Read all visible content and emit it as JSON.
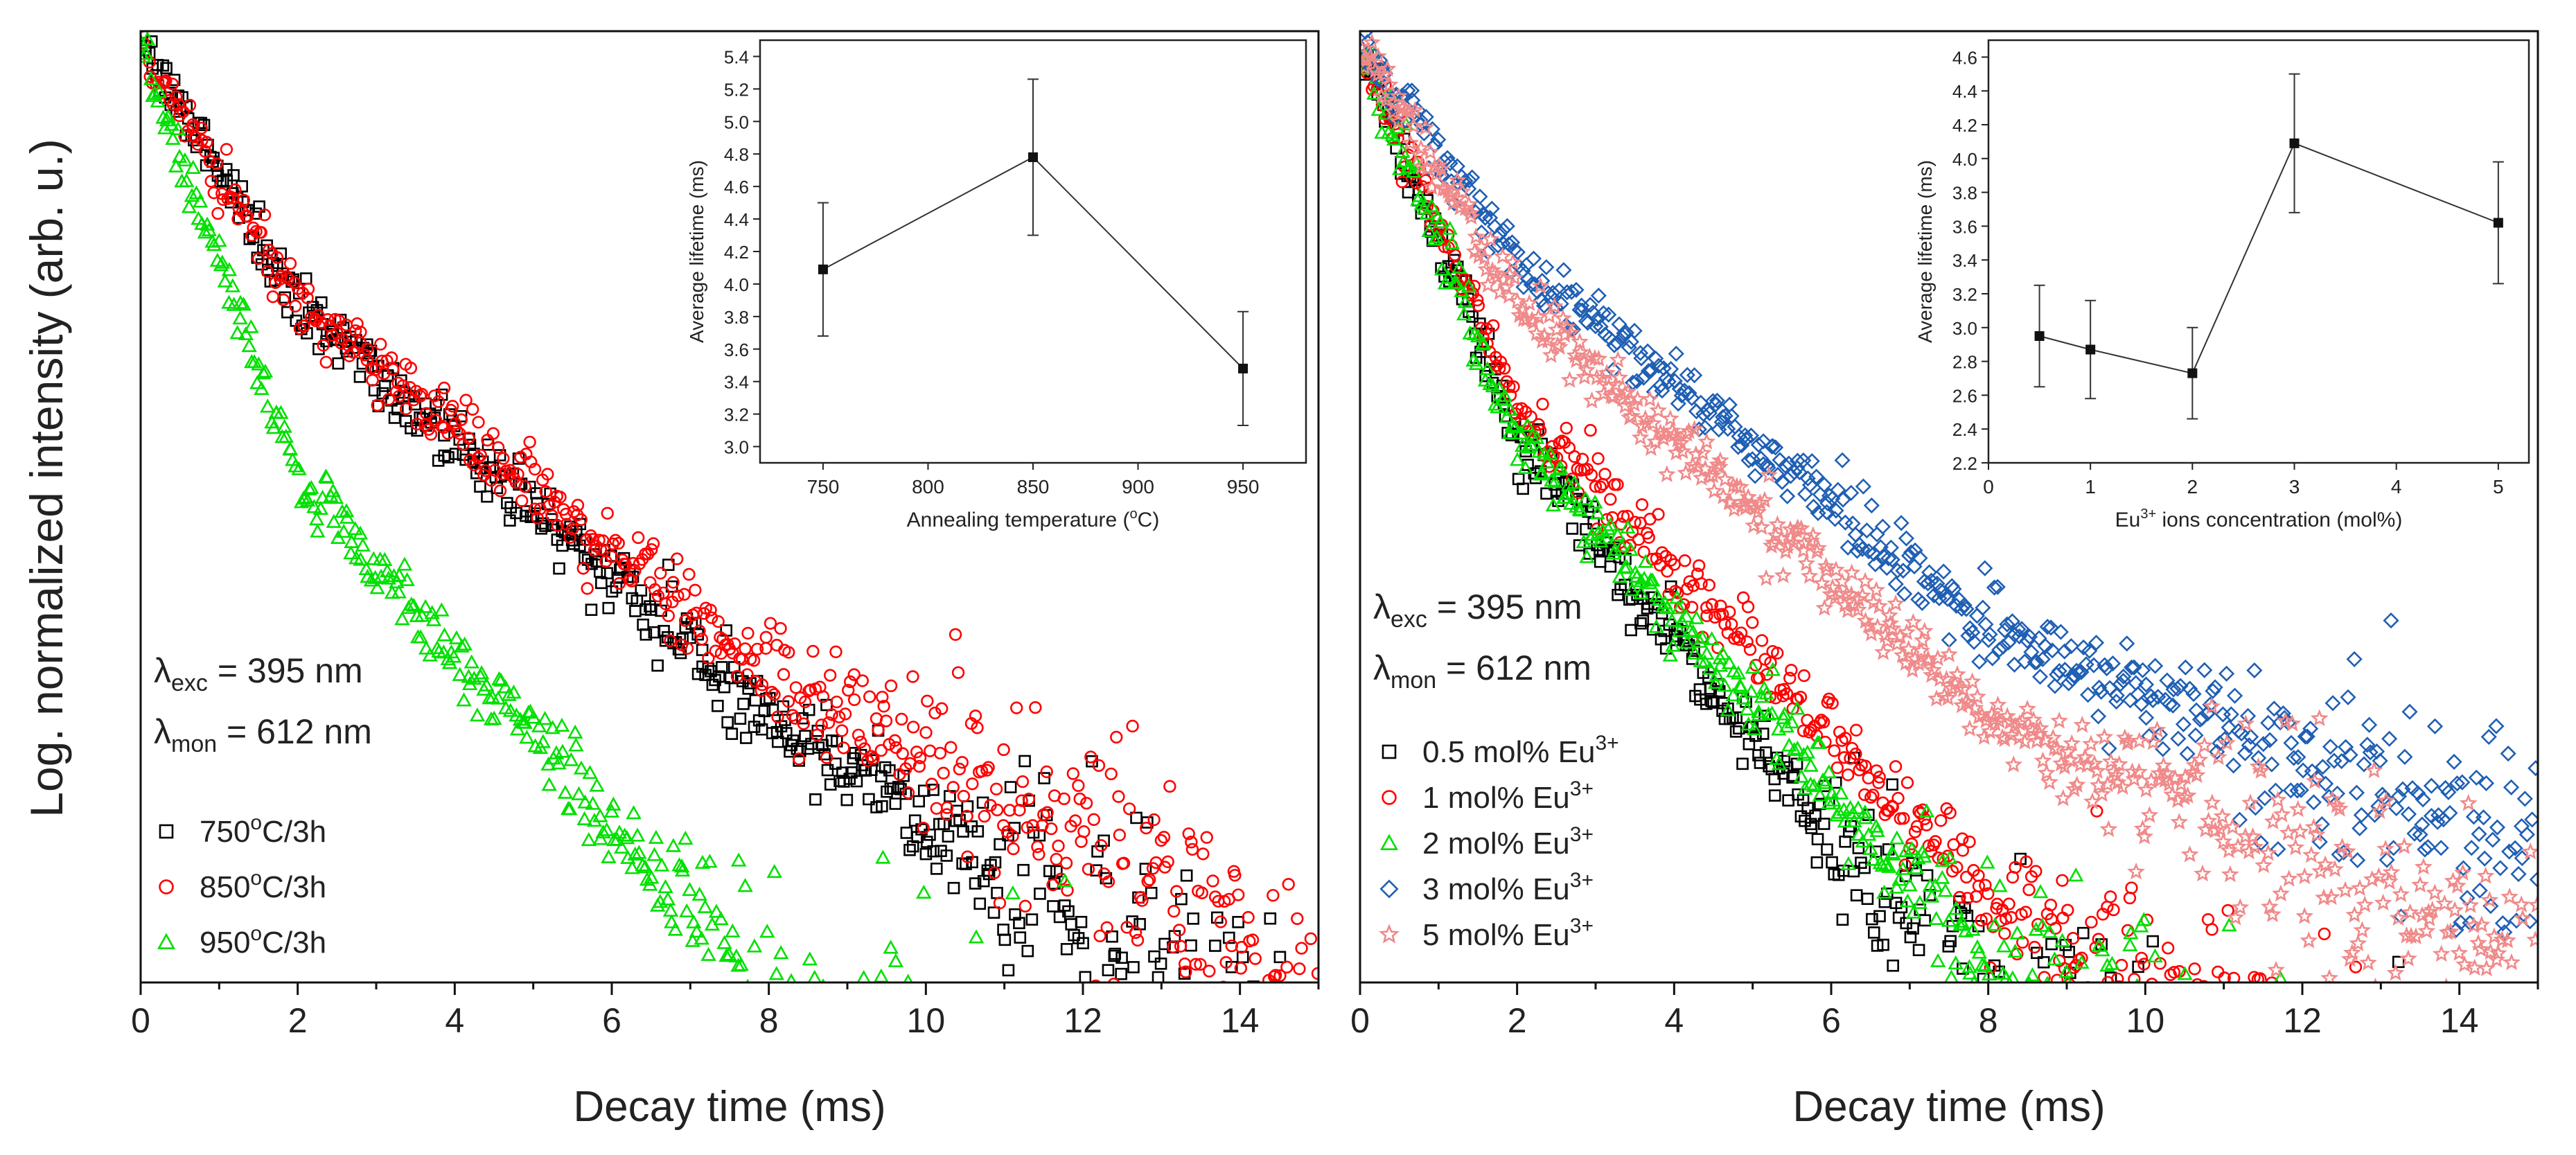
{
  "figure": {
    "y_axis_label": "Log. normalized intensity (arb. u.)"
  },
  "chart_data": [
    {
      "id": "left-main",
      "type": "scatter",
      "xlabel": "Decay time (ms)",
      "ylabel": "Log. normalized intensity (arb. u.)",
      "xlim": [
        0,
        15
      ],
      "ylim_log_decades": [
        0,
        2.6
      ],
      "y_ticks_labeled": false,
      "x_ticks": [
        0,
        2,
        4,
        6,
        8,
        10,
        12,
        14
      ],
      "excitation": {
        "symbol": "λ",
        "sub": "exc",
        "text": " = 395 nm"
      },
      "monitoring": {
        "symbol": "λ",
        "sub": "mon",
        "text": " = 612 nm"
      },
      "series": [
        {
          "name_main": "750",
          "name_sup": "o",
          "name_tail": "C/3h",
          "marker": "square",
          "color": "#000000",
          "decades_per_ms": [
            0.36,
            0.19,
            0.14
          ],
          "noise_onset_ms": 9.0,
          "noise_scale": 0.18
        },
        {
          "name_main": "850",
          "name_sup": "o",
          "name_tail": "C/3h",
          "marker": "circle",
          "color": "#ff0000",
          "decades_per_ms": [
            0.36,
            0.17,
            0.12
          ],
          "noise_onset_ms": 7.0,
          "noise_scale": 0.12
        },
        {
          "name_main": "950",
          "name_sup": "o",
          "name_tail": "C/3h",
          "marker": "triangle",
          "color": "#00e000",
          "decades_per_ms": [
            0.6,
            0.24,
            0.14
          ],
          "noise_onset_ms": 6.0,
          "noise_scale": 0.22
        }
      ],
      "inset": {
        "type": "line",
        "xlabel_main": "Annealing temperature (",
        "xlabel_sup": "o",
        "xlabel_tail": "C)",
        "ylabel": "Average lifetime (ms)",
        "xlim": [
          720,
          980
        ],
        "ylim": [
          2.9,
          5.5
        ],
        "x_ticks": [
          750,
          800,
          850,
          900,
          950
        ],
        "y_ticks": [
          3.0,
          3.2,
          3.4,
          3.6,
          3.8,
          4.0,
          4.2,
          4.4,
          4.6,
          4.8,
          5.0,
          5.2,
          5.4
        ],
        "y_tick_labels": [
          "3.0",
          "3.2",
          "3.4",
          "3.6",
          "3.8",
          "4.0",
          "4.2",
          "4.4",
          "4.6",
          "4.8",
          "5.0",
          "5.2",
          "5.4"
        ],
        "points": [
          {
            "x": 750,
            "y": 4.09,
            "err": 0.41
          },
          {
            "x": 850,
            "y": 4.78,
            "err": 0.48
          },
          {
            "x": 950,
            "y": 3.48,
            "err": 0.35
          }
        ]
      }
    },
    {
      "id": "right-main",
      "type": "scatter",
      "xlabel": "Decay time (ms)",
      "ylabel": "",
      "xlim": [
        0,
        15
      ],
      "ylim_log_decades": [
        0,
        2.6
      ],
      "y_ticks_labeled": false,
      "x_ticks": [
        0,
        2,
        4,
        6,
        8,
        10,
        12,
        14
      ],
      "excitation": {
        "symbol": "λ",
        "sub": "exc",
        "text": " = 395 nm"
      },
      "monitoring": {
        "symbol": "λ",
        "sub": "mon",
        "text": " = 612 nm"
      },
      "series": [
        {
          "name_main": "0.5 mol% Eu",
          "name_sup": "3+",
          "name_tail": "",
          "marker": "square",
          "color": "#000000",
          "decades_per_ms": [
            0.55,
            0.27,
            0.13
          ],
          "noise_onset_ms": 5.0,
          "noise_scale": 0.25
        },
        {
          "name_main": "1 mol% Eu",
          "name_sup": "3+",
          "name_tail": "",
          "marker": "circle",
          "color": "#ff0000",
          "decades_per_ms": [
            0.5,
            0.23,
            0.12
          ],
          "noise_onset_ms": 7.0,
          "noise_scale": 0.15
        },
        {
          "name_main": "2 mol% Eu",
          "name_sup": "3+",
          "name_tail": "",
          "marker": "triangle",
          "color": "#00e000",
          "decades_per_ms": [
            0.55,
            0.24,
            0.13
          ],
          "noise_onset_ms": 6.0,
          "noise_scale": 0.18
        },
        {
          "name_main": "3 mol% Eu",
          "name_sup": "3+",
          "name_tail": "",
          "marker": "diamond",
          "color": "#1f5fb4",
          "decades_per_ms": [
            0.3,
            0.17,
            0.09
          ],
          "noise_onset_ms": 9.0,
          "noise_scale": 0.12
        },
        {
          "name_main": "5 mol% Eu",
          "name_sup": "3+",
          "name_tail": "",
          "marker": "star",
          "color": "#f08a8a",
          "decades_per_ms": [
            0.36,
            0.19,
            0.1
          ],
          "noise_onset_ms": 8.0,
          "noise_scale": 0.14
        }
      ],
      "inset": {
        "type": "line",
        "xlabel_main": "Eu",
        "xlabel_sup": "3+",
        "xlabel_tail": " ions concentration (mol%)",
        "ylabel": "Average lifetime (ms)",
        "xlim": [
          0,
          5.3
        ],
        "ylim": [
          2.2,
          4.7
        ],
        "x_ticks": [
          0,
          1,
          2,
          3,
          4,
          5
        ],
        "y_ticks": [
          2.2,
          2.4,
          2.6,
          2.8,
          3.0,
          3.2,
          3.4,
          3.6,
          3.8,
          4.0,
          4.2,
          4.4,
          4.6
        ],
        "y_tick_labels": [
          "2.2",
          "2.4",
          "2.6",
          "2.8",
          "3.0",
          "3.2",
          "3.4",
          "3.6",
          "3.8",
          "4.0",
          "4.2",
          "4.4",
          "4.6"
        ],
        "points": [
          {
            "x": 0.5,
            "y": 2.95,
            "err": 0.3
          },
          {
            "x": 1,
            "y": 2.87,
            "err": 0.29
          },
          {
            "x": 2,
            "y": 2.73,
            "err": 0.27
          },
          {
            "x": 3,
            "y": 4.09,
            "err": 0.41
          },
          {
            "x": 5,
            "y": 3.62,
            "err": 0.36
          }
        ]
      }
    }
  ]
}
